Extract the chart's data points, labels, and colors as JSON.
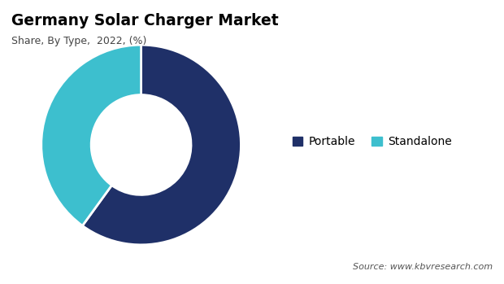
{
  "title": "Germany Solar Charger Market",
  "subtitle": "Share, By Type,  2022, (%)",
  "labels": [
    "Portable",
    "Standalone"
  ],
  "values": [
    60,
    40
  ],
  "colors": [
    "#1f3068",
    "#3dbfce"
  ],
  "legend_labels": [
    "Portable",
    "Standalone"
  ],
  "source_text": "Source: www.kbvresearch.com",
  "background_color": "#ffffff"
}
